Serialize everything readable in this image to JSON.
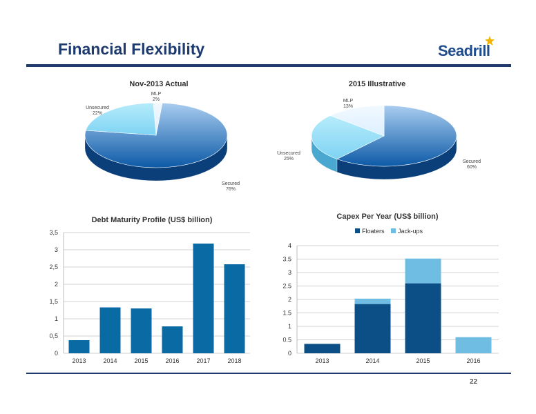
{
  "header": {
    "title": "Financial Flexibility",
    "logo": "Seadrill"
  },
  "footer": {
    "page": "22"
  },
  "colors": {
    "brand": "#1f3b6e",
    "pie_dark": "#0d5aa7",
    "pie_light": "#7fd3f3",
    "pie_pale": "#dcefff",
    "bar": "#0a6aa3",
    "floaters": "#0b4f86",
    "jackups": "#6fbde3"
  },
  "chart_data": [
    {
      "type": "pie",
      "title": "Nov-2013 Actual",
      "slices": [
        {
          "label": "Secured",
          "value": 76,
          "display": "76%"
        },
        {
          "label": "Unsecured",
          "value": 22,
          "display": "22%"
        },
        {
          "label": "MLP",
          "value": 2,
          "display": "2%"
        }
      ]
    },
    {
      "type": "pie",
      "title": "2015 Illustrative",
      "slices": [
        {
          "label": "Secured",
          "value": 60,
          "display": "60%"
        },
        {
          "label": "Unsecured",
          "value": 25,
          "display": "25%"
        },
        {
          "label": "MLP",
          "value": 13,
          "display": "13%"
        }
      ]
    },
    {
      "type": "bar",
      "title": "Debt Maturity Profile (US$ billion)",
      "categories": [
        "2013",
        "2014",
        "2015",
        "2016",
        "2017",
        "2018"
      ],
      "values": [
        0.38,
        1.33,
        1.3,
        0.78,
        3.18,
        2.58
      ],
      "ylim": [
        0,
        3.5
      ],
      "yticks": [
        "0",
        "0,5",
        "1",
        "1,5",
        "2",
        "2,5",
        "3",
        "3,5"
      ],
      "grid": true
    },
    {
      "type": "bar",
      "title": "Capex Per Year (US$ billion)",
      "stacked": true,
      "categories": [
        "2013",
        "2014",
        "2015",
        "2016"
      ],
      "series": [
        {
          "name": "Floaters",
          "values": [
            0.35,
            1.83,
            2.6,
            0
          ]
        },
        {
          "name": "Jack-ups",
          "values": [
            0,
            0.2,
            0.92,
            0.6
          ]
        }
      ],
      "ylim": [
        0,
        4
      ],
      "yticks": [
        "0",
        "0.5",
        "1",
        "1.5",
        "2",
        "2.5",
        "3",
        "3.5",
        "4"
      ],
      "legend_position": "top",
      "grid": true
    }
  ]
}
